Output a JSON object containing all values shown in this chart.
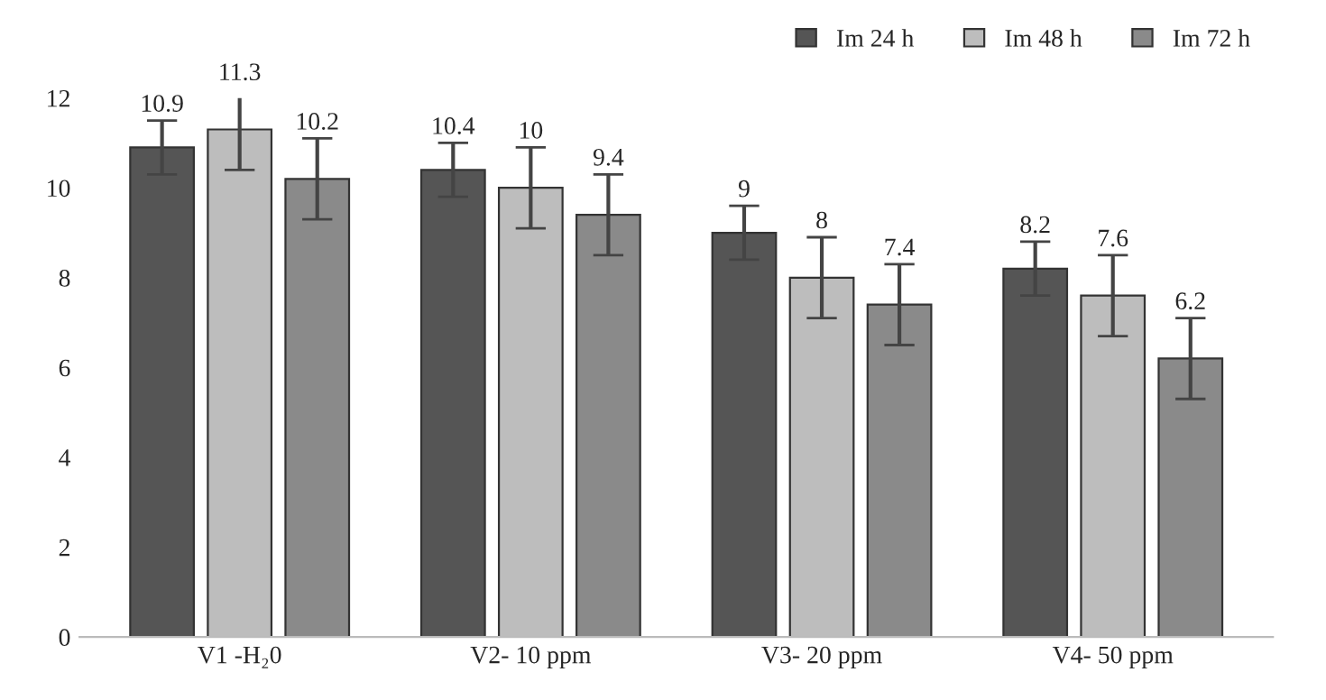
{
  "chart_data": {
    "type": "bar",
    "categories": [
      "V1 -H₂0",
      "V2- 10 ppm",
      "V3- 20 ppm",
      "V4- 50 ppm"
    ],
    "series": [
      {
        "name": "Im 24 h",
        "color": "#555555",
        "values": [
          10.9,
          10.4,
          9,
          8.2
        ],
        "errors": [
          0.6,
          0.6,
          0.6,
          0.6
        ]
      },
      {
        "name": "Im 48 h",
        "color": "#bdbdbd",
        "values": [
          11.3,
          10,
          8,
          7.6
        ],
        "errors": [
          0.9,
          0.9,
          0.9,
          0.9
        ]
      },
      {
        "name": "Im 72 h",
        "color": "#8a8a8a",
        "values": [
          10.2,
          9.4,
          7.4,
          6.2
        ],
        "errors": [
          0.9,
          0.9,
          0.9,
          0.9
        ]
      }
    ],
    "ylim": [
      0,
      12
    ],
    "yticks": [
      0,
      2,
      4,
      6,
      8,
      10,
      12
    ],
    "data_labels": true,
    "legend": "top right",
    "grid": false
  }
}
